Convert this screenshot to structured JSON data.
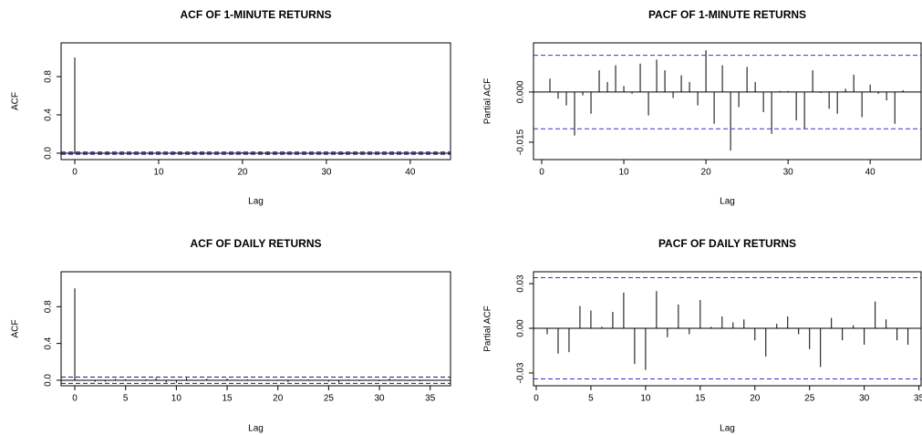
{
  "chart_data": [
    {
      "type": "stem",
      "title": "ACF OF 1-MINUTE RETURNS",
      "xlabel": "Lag",
      "ylabel": "ACF",
      "x": [
        0,
        1,
        2,
        3,
        4,
        5,
        6,
        7,
        8,
        9,
        10,
        11,
        12,
        13,
        14,
        15,
        16,
        17,
        18,
        19,
        20,
        21,
        22,
        23,
        24,
        25,
        26,
        27,
        28,
        29,
        30,
        31,
        32,
        33,
        34,
        35,
        36,
        37,
        38,
        39,
        40,
        41,
        42,
        43,
        44
      ],
      "values": [
        1,
        0.004,
        -0.002,
        -0.004,
        -0.013,
        -0.001,
        -0.0065,
        0.0065,
        0.003,
        0.008,
        0.0018,
        -0.0005,
        0.0085,
        -0.007,
        0.0097,
        0.0065,
        -0.0018,
        0.005,
        0.003,
        -0.004,
        0.0125,
        -0.0095,
        0.008,
        -0.0175,
        -0.0045,
        0.0075,
        0.003,
        -0.006,
        -0.0125,
        0.0003,
        0.0003,
        -0.0085,
        -0.011,
        0.0065,
        -0.0003,
        -0.005,
        -0.0065,
        0.001,
        0.0052,
        -0.0075,
        0.0022,
        -0.0005,
        -0.0025,
        -0.0095,
        0.0005
      ],
      "color": "#000000",
      "ci": [
        -0.011,
        0.011
      ],
      "ci_color": "#1a1a80",
      "xlim": [
        -1.63,
        44.8
      ],
      "ylim": [
        -0.067,
        1.152
      ],
      "xticks": [
        0,
        10,
        20,
        30,
        40
      ],
      "yticks": [
        {
          "value": 0,
          "label": "0.0"
        },
        0.4,
        0.8
      ]
    },
    {
      "type": "stem",
      "title": "PACF OF 1-MINUTE RETURNS",
      "xlabel": "Lag",
      "ylabel": "Partial ACF",
      "x": [
        1,
        2,
        3,
        4,
        5,
        6,
        7,
        8,
        9,
        10,
        11,
        12,
        13,
        14,
        15,
        16,
        17,
        18,
        19,
        20,
        21,
        22,
        23,
        24,
        25,
        26,
        27,
        28,
        29,
        30,
        31,
        32,
        33,
        34,
        35,
        36,
        37,
        38,
        39,
        40,
        41,
        42,
        43,
        44
      ],
      "values": [
        0.004,
        -0.002,
        -0.004,
        -0.013,
        -0.001,
        -0.0065,
        0.0065,
        0.003,
        0.008,
        0.0018,
        -0.0005,
        0.0085,
        -0.007,
        0.0097,
        0.0065,
        -0.0018,
        0.005,
        0.003,
        -0.004,
        0.0125,
        -0.0095,
        0.008,
        -0.0175,
        -0.0045,
        0.0075,
        0.003,
        -0.006,
        -0.0125,
        0.0003,
        0.0003,
        -0.0085,
        -0.011,
        0.0065,
        -0.0003,
        -0.005,
        -0.0065,
        0.001,
        0.0052,
        -0.0075,
        0.0022,
        -0.0005,
        -0.0025,
        -0.0095,
        0.0005
      ],
      "color": "#000000",
      "ci": [
        -0.011,
        0.011
      ],
      "ci_color": "#3333cc",
      "xlim": [
        -1,
        46.2
      ],
      "ylim": [
        -0.0202,
        0.0147
      ],
      "xticks": [
        0,
        10,
        20,
        30,
        40
      ],
      "yticks": [
        -0.015,
        {
          "value": 0,
          "label": "0.000"
        }
      ]
    },
    {
      "type": "stem",
      "title": "ACF OF DAILY RETURNS",
      "xlabel": "Lag",
      "ylabel": "ACF",
      "x": [
        0,
        1,
        2,
        3,
        4,
        5,
        6,
        7,
        8,
        9,
        10,
        11,
        12,
        13,
        14,
        15,
        16,
        17,
        18,
        19,
        20,
        21,
        22,
        23,
        24,
        25,
        26,
        27,
        28,
        29,
        30,
        31,
        32,
        33,
        34,
        35
      ],
      "values": [
        1,
        -0.004,
        -0.017,
        -0.016,
        0.015,
        0.012,
        0.001,
        0.011,
        0.024,
        -0.024,
        -0.028,
        0.025,
        -0.006,
        0.016,
        -0.004,
        0.019,
        0.001,
        0.008,
        0.004,
        0.006,
        -0.008,
        -0.019,
        0.003,
        0.008,
        -0.004,
        -0.014,
        -0.026,
        0.007,
        -0.008,
        0.002,
        -0.011,
        0.018,
        0.006,
        -0.008,
        -0.011,
        -0.005
      ],
      "color": "#000000",
      "ci": [
        -0.034,
        0.034
      ],
      "ci_color": "#1a1a80",
      "xlim": [
        -1.35,
        37
      ],
      "ylim": [
        -0.06,
        1.18
      ],
      "xticks": [
        0,
        5,
        10,
        15,
        20,
        25,
        30,
        35
      ],
      "yticks": [
        {
          "value": 0,
          "label": "0.0"
        },
        0.4,
        0.8
      ]
    },
    {
      "type": "stem",
      "title": "PACF OF DAILY RETURNS",
      "xlabel": "Lag",
      "ylabel": "Partial ACF",
      "x": [
        1,
        2,
        3,
        4,
        5,
        6,
        7,
        8,
        9,
        10,
        11,
        12,
        13,
        14,
        15,
        16,
        17,
        18,
        19,
        20,
        21,
        22,
        23,
        24,
        25,
        26,
        27,
        28,
        29,
        30,
        31,
        32,
        33,
        34
      ],
      "values": [
        -0.004,
        -0.017,
        -0.016,
        0.015,
        0.012,
        0.001,
        0.011,
        0.024,
        -0.024,
        -0.028,
        0.025,
        -0.006,
        0.016,
        -0.004,
        0.019,
        0.001,
        0.008,
        0.004,
        0.006,
        -0.008,
        -0.019,
        0.003,
        0.008,
        -0.004,
        -0.014,
        -0.026,
        0.007,
        -0.008,
        0.002,
        -0.011,
        0.018,
        0.006,
        -0.008,
        -0.011
      ],
      "color": "#000000",
      "ci": [
        -0.034,
        0.034
      ],
      "ci_color": "#3333cc",
      "xlim": [
        -0.25,
        35.2
      ],
      "ylim": [
        -0.0386,
        0.038
      ],
      "xticks": [
        0,
        5,
        10,
        15,
        20,
        25,
        30,
        35
      ],
      "yticks": [
        -0.03,
        {
          "value": 0,
          "label": "0.00"
        },
        0.03
      ]
    }
  ]
}
